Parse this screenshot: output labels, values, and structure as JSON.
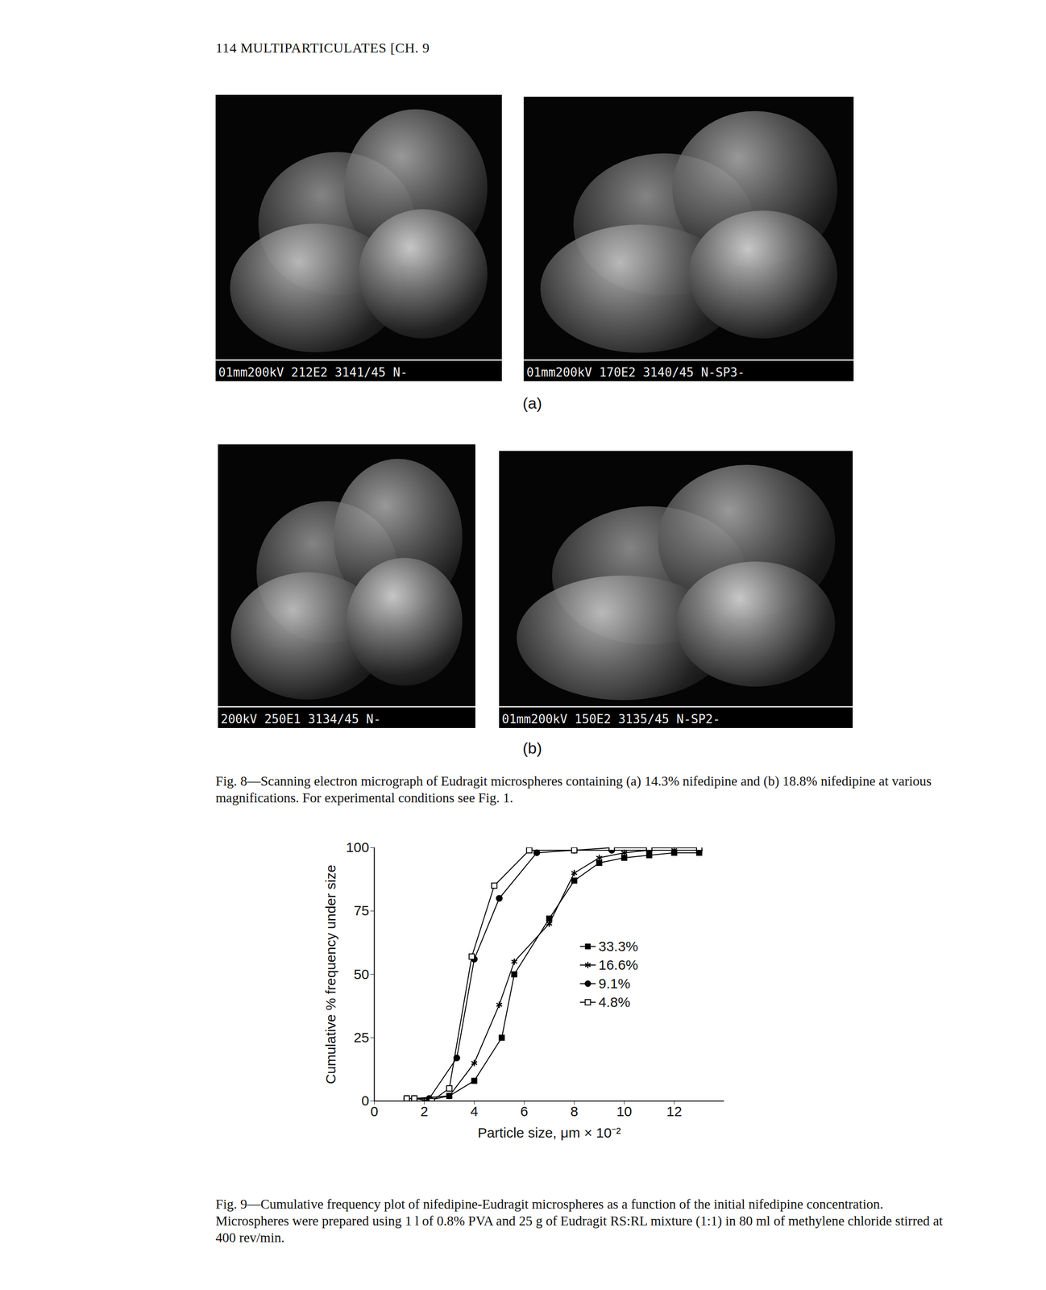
{
  "header": "114 MULTIPARTICULATES [CH. 9",
  "figure_8": {
    "panels": [
      {
        "label": "(a)",
        "images": [
          {
            "scale_bar_text": "01mm200kV 212E2 3141/45 N-"
          },
          {
            "scale_bar_text": "01mm200kV 170E2 3140/45 N-SP3-"
          }
        ]
      },
      {
        "label": "(b)",
        "images": [
          {
            "scale_bar_text": "200kV 250E1 3134/45 N-"
          },
          {
            "scale_bar_text": "01mm200kV 150E2 3135/45 N-SP2-"
          }
        ]
      }
    ],
    "caption": "Fig. 8—Scanning electron micrograph of Eudragit microspheres containing (a) 14.3% nifedipine and (b) 18.8% nifedipine at various magnifications. For experimental conditions see Fig. 1."
  },
  "chart_data": {
    "type": "line",
    "x_label": "Particle size, μm × 10⁻²",
    "y_label": "Cumulative % frequency under size",
    "xlim": [
      0,
      14
    ],
    "xticks": [
      0,
      2,
      4,
      6,
      8,
      10,
      12
    ],
    "ylim": [
      0,
      100
    ],
    "yticks": [
      0,
      25,
      50,
      75,
      100
    ],
    "grid": false,
    "series": [
      {
        "name": "33.3%",
        "color": "#000000",
        "marker": "filled-square",
        "x": [
          1.3,
          1.6,
          3.0,
          4.0,
          5.1,
          5.6,
          7.0,
          8.0,
          9.0,
          10.0,
          11.0,
          12.0,
          13.0
        ],
        "values": [
          1,
          1,
          2,
          8,
          25,
          50,
          72,
          87,
          94,
          96,
          97,
          98,
          98
        ]
      },
      {
        "name": "16.6%",
        "color": "#000000",
        "marker": "asterisk",
        "x": [
          2.0,
          3.0,
          4.0,
          5.0,
          5.6,
          7.0,
          8.0,
          9.0,
          10.0,
          11.0,
          12.0,
          13.0
        ],
        "values": [
          0,
          2,
          15,
          38,
          55,
          70,
          90,
          96,
          98,
          99,
          99,
          99
        ]
      },
      {
        "name": "9.1%",
        "color": "#000000",
        "marker": "filled-circle",
        "x": [
          1.3,
          1.6,
          2.2,
          3.3,
          4.0,
          5.0,
          6.5,
          8.0,
          9.5,
          11.0,
          13.0
        ],
        "values": [
          1,
          1,
          1,
          17,
          56,
          80,
          98,
          99,
          99,
          99,
          99
        ]
      },
      {
        "name": "4.8%",
        "color": "#000000",
        "marker": "open-square",
        "x": [
          1.3,
          1.6,
          2.3,
          3.0,
          3.9,
          4.8,
          6.2,
          8.0,
          9.5,
          11.0,
          13.0
        ],
        "values": [
          1,
          1,
          0,
          5,
          57,
          85,
          99,
          99,
          100,
          100,
          100
        ]
      }
    ]
  },
  "figure_9": {
    "caption": "Fig. 9—Cumulative frequency plot of nifedipine-Eudragit microspheres as a function of the initial nifedipine concentration. Microspheres were prepared using 1 l of 0.8% PVA and 25 g of Eudragit RS:RL mixture (1:1) in 80 ml of methylene chloride stirred at 400 rev/min."
  }
}
